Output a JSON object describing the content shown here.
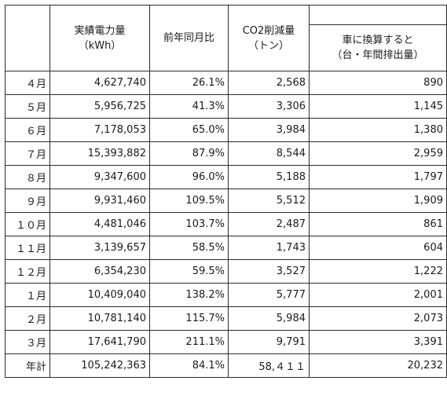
{
  "table": {
    "headers": {
      "power": {
        "line1": "実績電力量",
        "line2": "（kWh）"
      },
      "yoy": {
        "line1": "前年同月比"
      },
      "co2": {
        "line1": "CO2削減量",
        "line2": "（トン）"
      },
      "car": {
        "line1": "車に換算すると",
        "line2": "（台・年間排出量）"
      }
    },
    "rows": [
      {
        "month": "４月",
        "power": "4,627,740",
        "yoy": "26.1%",
        "co2": "2,568",
        "car": "890"
      },
      {
        "month": "５月",
        "power": "5,956,725",
        "yoy": "41.3%",
        "co2": "3,306",
        "car": "1,145"
      },
      {
        "month": "６月",
        "power": "7,178,053",
        "yoy": "65.0%",
        "co2": "3,984",
        "car": "1,380"
      },
      {
        "month": "７月",
        "power": "15,393,882",
        "yoy": "87.9%",
        "co2": "8,544",
        "car": "2,959"
      },
      {
        "month": "８月",
        "power": "9,347,600",
        "yoy": "96.0%",
        "co2": "5,188",
        "car": "1,797"
      },
      {
        "month": "９月",
        "power": "9,931,460",
        "yoy": "109.5%",
        "co2": "5,512",
        "car": "1,909"
      },
      {
        "month": "１０月",
        "power": "4,481,046",
        "yoy": "103.7%",
        "co2": "2,487",
        "car": "861"
      },
      {
        "month": "１１月",
        "power": "3,139,657",
        "yoy": "58.5%",
        "co2": "1,743",
        "car": "604"
      },
      {
        "month": "１２月",
        "power": "6,354,230",
        "yoy": "59.5%",
        "co2": "3,527",
        "car": "1,222"
      },
      {
        "month": "１月",
        "power": "10,409,040",
        "yoy": "138.2%",
        "co2": "5,777",
        "car": "2,001"
      },
      {
        "month": "２月",
        "power": "10,781,140",
        "yoy": "115.7%",
        "co2": "5,984",
        "car": "2,073"
      },
      {
        "month": "３月",
        "power": "17,641,790",
        "yoy": "211.1%",
        "co2": "9,791",
        "car": "3,391"
      },
      {
        "month": "年計",
        "power": "105,242,363",
        "yoy": "84.1%",
        "co2": "58,４１１",
        "car": "20,232"
      }
    ]
  }
}
